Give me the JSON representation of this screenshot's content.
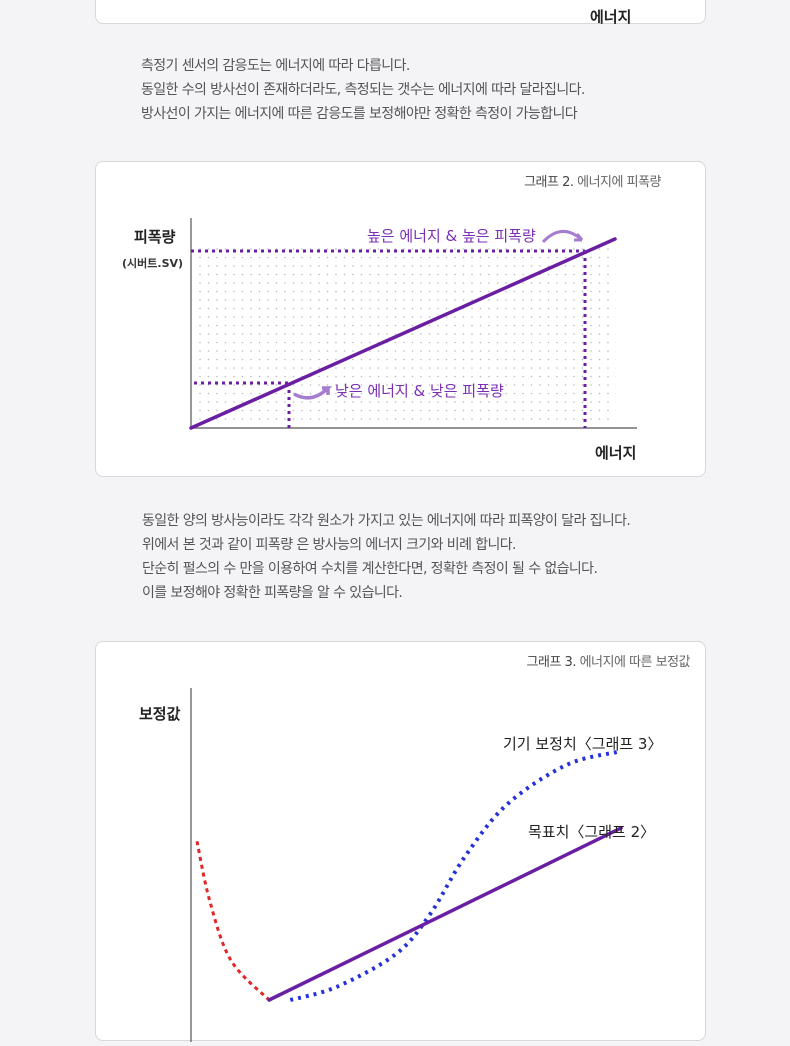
{
  "card1": {
    "xlabel": "에너지"
  },
  "para1": {
    "lines": [
      "측정기 센서의 감응도는 에너지에 따라  다릅니다.",
      "동일한 수의 방사선이 존재하더라도, 측정되는 갯수는 에너지에 따라 달라집니다.",
      "방사선이 가지는 에너지에 따른 감응도를 보정해야만 정확한 측정이 가능합니다"
    ]
  },
  "para2": {
    "lines": [
      "동일한 양의 방사능이라도 각각 원소가 가지고 있는 에너지에 따라 피폭양이 달라 집니다.",
      "위에서 본 것과 같이 피폭량 은 방사능의 에너지 크기와 비례 합니다.",
      "단순히 펄스의 수 만을 이용하여 수치를 계산한다면, 정확한 측정이 될 수 없습니다.",
      "이를 보정해야 정확한 피폭량을 알 수 있습니다."
    ]
  },
  "chart_data": [
    {
      "type": "line",
      "caption_num": "그래프 2.",
      "caption_text": "에너지에 피폭량",
      "ylabel": "피폭량",
      "yunit": "(시버트.SV)",
      "xlabel": "에너지",
      "grid": "dotted",
      "series": [
        {
          "values": [
            [
              0,
              0
            ],
            [
              1,
              1
            ]
          ],
          "color": "#6a1fa3"
        }
      ],
      "annotations": [
        {
          "text": "높은 에너지 & 높은 피폭량",
          "x": 0.93,
          "y": 0.84,
          "color": "#7b2fb3"
        },
        {
          "text": "낮은 에너지 & 낮은 피폭량",
          "x": 0.23,
          "y": 0.21,
          "color": "#7b2fb3"
        }
      ]
    },
    {
      "type": "line",
      "caption_num": "그래프 3.",
      "caption_text": "에너지에 따른 보정값",
      "ylabel": "보정값",
      "series": [
        {
          "name": "목표치〈그래프 2〉",
          "style": "solid",
          "color": "#6a1fa3",
          "values": [
            [
              0.17,
              0.0
            ],
            [
              1.0,
              0.52
            ]
          ]
        },
        {
          "name": "기기 보정치〈그래프 3〉",
          "style": "dotted",
          "color": "#2432d8",
          "values": [
            [
              0.22,
              0.0
            ],
            [
              0.33,
              0.04
            ],
            [
              0.47,
              0.14
            ],
            [
              0.55,
              0.26
            ],
            [
              0.63,
              0.43
            ],
            [
              0.73,
              0.59
            ],
            [
              0.87,
              0.71
            ],
            [
              0.99,
              0.75
            ]
          ]
        },
        {
          "style": "dotted",
          "color": "#e02626",
          "values": [
            [
              0.0,
              0.48
            ],
            [
              0.03,
              0.3
            ],
            [
              0.08,
              0.12
            ],
            [
              0.17,
              0.0
            ]
          ]
        }
      ]
    }
  ]
}
